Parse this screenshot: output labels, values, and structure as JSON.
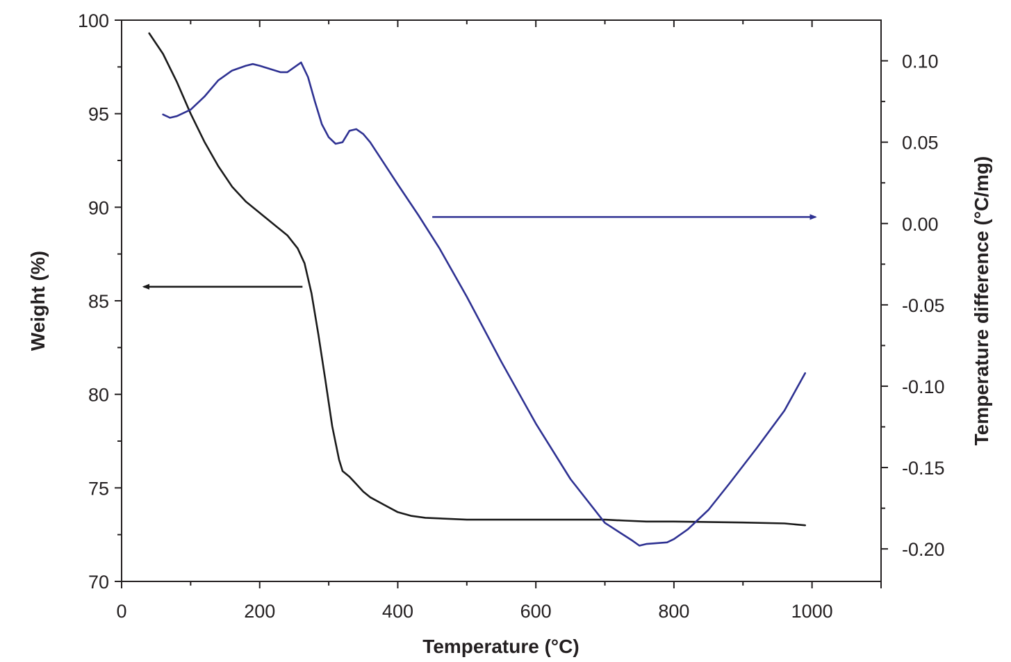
{
  "chart_data": {
    "type": "line",
    "title": "",
    "xlabel": "Temperature (°C)",
    "ylabel_left": "Weight (%)",
    "ylabel_right": "Temperature difference (°C/mg)",
    "xlim": [
      0,
      1100
    ],
    "ylim_left": [
      70,
      100
    ],
    "ylim_right": [
      -0.22,
      0.125
    ],
    "x_ticks": [
      0,
      200,
      400,
      600,
      800,
      1000
    ],
    "x_tick_labels": [
      "0",
      "200",
      "400",
      "600",
      "800",
      "1000"
    ],
    "y_left_ticks": [
      70,
      75,
      80,
      85,
      90,
      95,
      100
    ],
    "y_left_tick_labels": [
      "70",
      "75",
      "80",
      "85",
      "90",
      "95",
      "100"
    ],
    "y_right_ticks": [
      0.1,
      0.05,
      0.0,
      -0.05,
      -0.1,
      -0.15,
      -0.2
    ],
    "y_right_tick_labels": [
      "0.10",
      "0.05",
      "0.00",
      "-0.05",
      "-0.10",
      "-0.15",
      "-0.20"
    ],
    "grid": false,
    "series": [
      {
        "axis": "left",
        "color": "#1a1a1a",
        "x": [
          40,
          60,
          80,
          100,
          120,
          140,
          160,
          180,
          200,
          220,
          240,
          255,
          265,
          275,
          285,
          295,
          305,
          315,
          320,
          330,
          340,
          350,
          360,
          380,
          400,
          420,
          440,
          500,
          600,
          700,
          730,
          760,
          800,
          900,
          960,
          990
        ],
        "y": [
          99.3,
          98.2,
          96.7,
          95.0,
          93.5,
          92.2,
          91.1,
          90.3,
          89.7,
          89.1,
          88.5,
          87.8,
          87.0,
          85.4,
          83.2,
          80.8,
          78.3,
          76.5,
          75.9,
          75.6,
          75.2,
          74.8,
          74.5,
          74.1,
          73.7,
          73.5,
          73.4,
          73.3,
          73.3,
          73.3,
          73.25,
          73.2,
          73.2,
          73.15,
          73.1,
          73.0
        ]
      },
      {
        "axis": "right",
        "color": "#2e3192",
        "x": [
          60,
          70,
          80,
          100,
          120,
          140,
          160,
          180,
          190,
          200,
          215,
          230,
          240,
          250,
          260,
          270,
          280,
          290,
          300,
          310,
          320,
          330,
          340,
          350,
          360,
          380,
          400,
          430,
          460,
          500,
          550,
          600,
          650,
          700,
          740,
          750,
          760,
          790,
          800,
          820,
          850,
          880,
          920,
          960,
          990
        ],
        "y": [
          0.067,
          0.065,
          0.066,
          0.07,
          0.078,
          0.088,
          0.094,
          0.097,
          0.098,
          0.097,
          0.095,
          0.093,
          0.093,
          0.096,
          0.099,
          0.09,
          0.075,
          0.061,
          0.053,
          0.049,
          0.05,
          0.057,
          0.058,
          0.055,
          0.05,
          0.037,
          0.024,
          0.005,
          -0.015,
          -0.045,
          -0.085,
          -0.123,
          -0.157,
          -0.184,
          -0.195,
          -0.198,
          -0.197,
          -0.196,
          -0.194,
          -0.188,
          -0.176,
          -0.16,
          -0.138,
          -0.115,
          -0.092
        ]
      }
    ],
    "annotations": [
      {
        "type": "arrow",
        "color": "#1a1a1a",
        "axis": "left",
        "from": [
          262,
          85.75
        ],
        "to": [
          32,
          85.75
        ],
        "meaning": "points to left axis"
      },
      {
        "type": "arrow",
        "color": "#2e3192",
        "axis": "right",
        "from": [
          450,
          0.004
        ],
        "to": [
          1005,
          0.004
        ],
        "meaning": "points to right axis"
      }
    ]
  }
}
